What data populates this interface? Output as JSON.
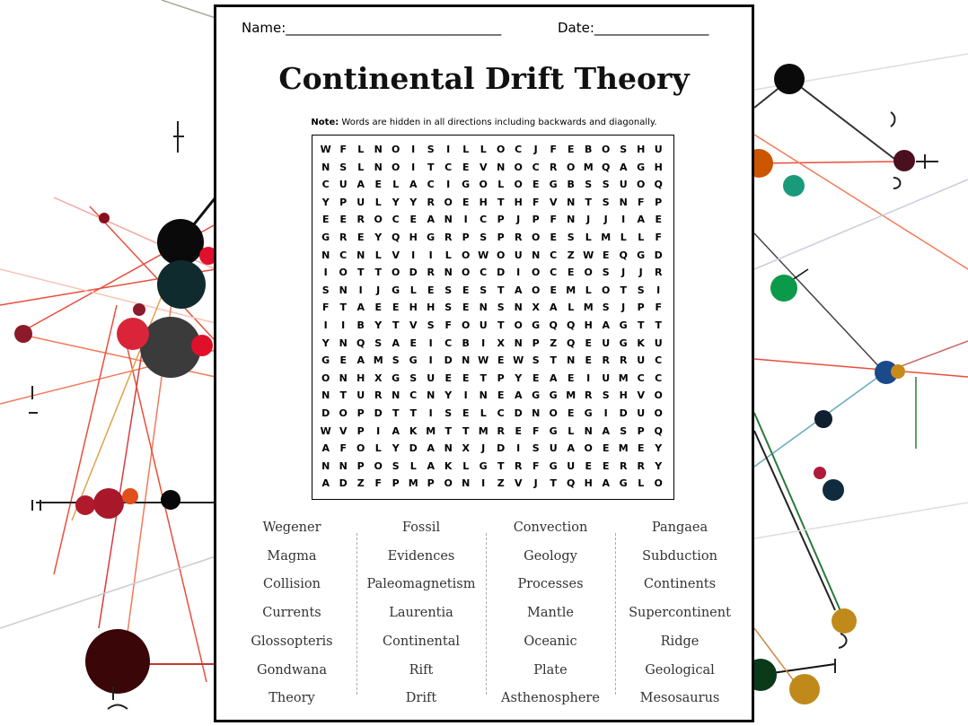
{
  "header": {
    "name_label": "Name:________________________________",
    "date_label": "Date:_________________"
  },
  "title": "Continental Drift Theory",
  "note": {
    "bold": "Note:",
    "text": " Words are hidden in all directions including backwards and diagonally."
  },
  "grid": [
    "WFLNOISILLOCJFEBOSHU",
    "NSLNOITCEVNOCROMQAGH",
    "CUAELACIGOLOEGBSSUOQ",
    "YPULYYROEHTHFVNTSNFP",
    "EEROCEANICPJPFNJJIAE",
    "GREYQHGRPSPROESLMLLF",
    "NCNLVIILOWOUNCZWEQGD",
    "IOTTODRNOCDIOCEOSJJR",
    "SNIJGLESESTAOEMLOTSI",
    "FTAEEHHSENSNXALMSJPF",
    "IIBYTVSFOUTOGQQHAGTT",
    "YNQSAEICBIXNPZQEUGKU",
    "GEAMSGIDNWEWSTNERRUC",
    "ONHXGSUEETPYEAEIUMCC",
    "NTURNCNYINEAGGMRSHVO",
    "DOPDTTISELCDNOEGIDUO",
    "WVPIAKMTTMREFGLNASPQ",
    "AFOLYDANXJDISUAOEMEY",
    "NNPOSLAKLGTRFGUEERRY",
    "ADZFPMPONIZVJTQHAGLO"
  ],
  "word_columns": [
    [
      "Wegener",
      "Magma",
      "Collision",
      "Currents",
      "Glossopteris",
      "Gondwana",
      "Theory"
    ],
    [
      "Fossil",
      "Evidences",
      "Paleomagnetism",
      "Laurentia",
      "Continental",
      "Rift",
      "Drift"
    ],
    [
      "Convection",
      "Geology",
      "Processes",
      "Mantle",
      "Oceanic",
      "Plate",
      "Asthenosphere"
    ],
    [
      "Pangaea",
      "Subduction",
      "Continents",
      "Supercontinent",
      "Ridge",
      "Geological",
      "Mesosaurus"
    ]
  ]
}
